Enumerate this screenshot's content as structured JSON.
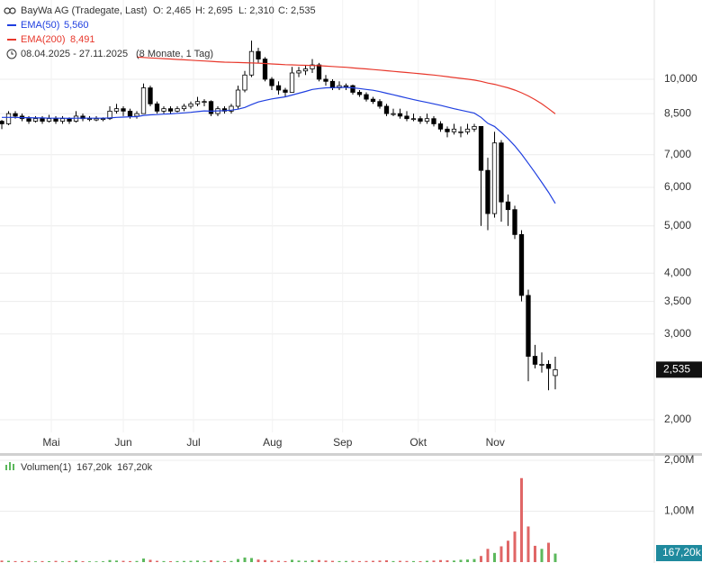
{
  "chart_data": {
    "type": "candlestick",
    "title": "BayWa AG (Tradegate, Last)",
    "ohlc_text": [
      "O: 2,465",
      "H: 2,695",
      "L: 2,310",
      "C: 2,535"
    ],
    "period": "08.04.2025 - 27.11.2025",
    "period_note": "(8 Monate, 1 Tag)",
    "last_price_label": "2,535",
    "log_scale": true,
    "grid": true,
    "up_color": "#ffffff",
    "down_color": "#000000",
    "ylim": [
      1.709,
      14.54
    ],
    "yticks": [
      {
        "value": 2,
        "label": "2,000"
      },
      {
        "value": 3,
        "label": "3,000"
      },
      {
        "value": 3.5,
        "label": "3,500"
      },
      {
        "value": 4,
        "label": "4,000"
      },
      {
        "value": 5,
        "label": "5,000"
      },
      {
        "value": 6,
        "label": "6,000"
      },
      {
        "value": 7,
        "label": "7,000"
      },
      {
        "value": 8.5,
        "label": "8,500"
      },
      {
        "value": 10,
        "label": "10,000"
      }
    ],
    "xlim": [
      -0.27,
      96.67
    ],
    "xticks": [
      {
        "value": 7.33,
        "label": "Mai"
      },
      {
        "value": 18,
        "label": "Jun"
      },
      {
        "value": 28.4,
        "label": "Jul"
      },
      {
        "value": 40.1,
        "label": "Aug"
      },
      {
        "value": 50.5,
        "label": "Sep"
      },
      {
        "value": 61.7,
        "label": "Okt"
      },
      {
        "value": 73.1,
        "label": "Nov"
      }
    ],
    "ohlc": [
      [
        8.2,
        8.25,
        7.9,
        8.1
      ],
      [
        8.1,
        8.6,
        8.05,
        8.5
      ],
      [
        8.5,
        8.6,
        8.3,
        8.4
      ],
      [
        8.4,
        8.5,
        8.2,
        8.3
      ],
      [
        8.3,
        8.4,
        8.1,
        8.2
      ],
      [
        8.2,
        8.4,
        8.15,
        8.3
      ],
      [
        8.3,
        8.4,
        8.1,
        8.2
      ],
      [
        8.2,
        8.45,
        8.15,
        8.3
      ],
      [
        8.3,
        8.4,
        8.1,
        8.2
      ],
      [
        8.2,
        8.4,
        8.1,
        8.3
      ],
      [
        8.3,
        8.35,
        8.1,
        8.2
      ],
      [
        8.2,
        8.6,
        8.15,
        8.4
      ],
      [
        8.4,
        8.5,
        8.2,
        8.3
      ],
      [
        8.3,
        8.4,
        8.2,
        8.3
      ],
      [
        8.25,
        8.4,
        8.2,
        8.3
      ],
      [
        8.3,
        8.35,
        8.2,
        8.3
      ],
      [
        8.3,
        8.8,
        8.25,
        8.6
      ],
      [
        8.6,
        8.9,
        8.5,
        8.7
      ],
      [
        8.7,
        8.8,
        8.4,
        8.6
      ],
      [
        8.6,
        8.7,
        8.3,
        8.4
      ],
      [
        8.4,
        8.6,
        8.3,
        8.5
      ],
      [
        8.5,
        9.8,
        8.5,
        9.6
      ],
      [
        9.6,
        9.7,
        8.8,
        8.9
      ],
      [
        8.9,
        9.0,
        8.5,
        8.6
      ],
      [
        8.6,
        8.8,
        8.5,
        8.7
      ],
      [
        8.7,
        8.8,
        8.5,
        8.6
      ],
      [
        8.6,
        8.8,
        8.55,
        8.7
      ],
      [
        8.7,
        8.9,
        8.6,
        8.8
      ],
      [
        8.8,
        9.0,
        8.7,
        8.9
      ],
      [
        8.9,
        9.2,
        8.8,
        9.0
      ],
      [
        9.0,
        9.1,
        8.8,
        9.0
      ],
      [
        9.0,
        9.05,
        8.4,
        8.5
      ],
      [
        8.5,
        8.8,
        8.4,
        8.7
      ],
      [
        8.7,
        8.8,
        8.5,
        8.6
      ],
      [
        8.6,
        8.9,
        8.5,
        8.8
      ],
      [
        8.8,
        9.7,
        8.7,
        9.5
      ],
      [
        9.5,
        10.4,
        9.4,
        10.2
      ],
      [
        10.2,
        12.0,
        10.1,
        11.4
      ],
      [
        11.4,
        11.6,
        10.8,
        11.0
      ],
      [
        11.0,
        11.1,
        9.9,
        10.0
      ],
      [
        10.0,
        10.1,
        9.5,
        9.7
      ],
      [
        9.7,
        9.9,
        9.3,
        9.5
      ],
      [
        9.5,
        9.6,
        9.2,
        9.4
      ],
      [
        9.4,
        10.6,
        9.4,
        10.3
      ],
      [
        10.3,
        10.6,
        10.1,
        10.4
      ],
      [
        10.4,
        10.7,
        10.2,
        10.5
      ],
      [
        10.5,
        11.0,
        10.3,
        10.7
      ],
      [
        10.7,
        10.8,
        9.9,
        10.0
      ],
      [
        10.0,
        10.2,
        9.7,
        9.9
      ],
      [
        9.9,
        10.0,
        9.5,
        9.6
      ],
      [
        9.6,
        9.9,
        9.5,
        9.7
      ],
      [
        9.7,
        9.8,
        9.5,
        9.7
      ],
      [
        9.7,
        9.75,
        9.3,
        9.4
      ],
      [
        9.4,
        9.5,
        9.2,
        9.3
      ],
      [
        9.3,
        9.4,
        9.0,
        9.1
      ],
      [
        9.1,
        9.2,
        8.9,
        9.0
      ],
      [
        9.0,
        9.1,
        8.7,
        8.8
      ],
      [
        8.8,
        8.9,
        8.4,
        8.5
      ],
      [
        8.5,
        8.7,
        8.4,
        8.5
      ],
      [
        8.5,
        8.7,
        8.3,
        8.4
      ],
      [
        8.4,
        8.6,
        8.2,
        8.3
      ],
      [
        8.3,
        8.5,
        8.2,
        8.3
      ],
      [
        8.3,
        8.4,
        8.1,
        8.2
      ],
      [
        8.2,
        8.5,
        8.1,
        8.3
      ],
      [
        8.3,
        8.4,
        8.0,
        8.1
      ],
      [
        8.1,
        8.2,
        7.8,
        7.9
      ],
      [
        7.9,
        8.0,
        7.6,
        7.8
      ],
      [
        7.8,
        8.1,
        7.7,
        7.9
      ],
      [
        7.8,
        8.0,
        7.6,
        7.8
      ],
      [
        7.8,
        8.1,
        7.7,
        7.9
      ],
      [
        7.9,
        8.1,
        7.8,
        8.0
      ],
      [
        8.0,
        8.0,
        5.0,
        6.5
      ],
      [
        6.5,
        6.9,
        4.9,
        5.3
      ],
      [
        5.3,
        7.8,
        5.2,
        7.4
      ],
      [
        7.4,
        7.5,
        5.1,
        5.6
      ],
      [
        5.6,
        5.8,
        5.0,
        5.4
      ],
      [
        5.4,
        5.5,
        4.7,
        4.8
      ],
      [
        4.8,
        4.9,
        3.5,
        3.6
      ],
      [
        3.6,
        3.7,
        2.4,
        2.7
      ],
      [
        2.7,
        2.85,
        2.55,
        2.6
      ],
      [
        2.6,
        2.75,
        2.5,
        2.6
      ],
      [
        2.6,
        2.65,
        2.3,
        2.55
      ],
      [
        2.465,
        2.695,
        2.31,
        2.535
      ]
    ],
    "series": [
      {
        "name": "EMA(50)",
        "color": "#1f3fe0",
        "last_label": "5,560",
        "values": [
          8.35,
          8.35,
          8.35,
          8.34,
          8.34,
          8.33,
          8.33,
          8.32,
          8.32,
          8.32,
          8.31,
          8.32,
          8.32,
          8.32,
          8.32,
          8.32,
          8.33,
          8.35,
          8.36,
          8.37,
          8.38,
          8.43,
          8.45,
          8.46,
          8.48,
          8.49,
          8.51,
          8.53,
          8.55,
          8.58,
          8.61,
          8.6,
          8.61,
          8.62,
          8.64,
          8.68,
          8.75,
          8.87,
          8.98,
          9.05,
          9.11,
          9.16,
          9.2,
          9.28,
          9.36,
          9.44,
          9.53,
          9.57,
          9.6,
          9.61,
          9.62,
          9.62,
          9.6,
          9.57,
          9.53,
          9.49,
          9.43,
          9.36,
          9.29,
          9.22,
          9.15,
          9.08,
          9.02,
          8.96,
          8.9,
          8.84,
          8.77,
          8.7,
          8.64,
          8.58,
          8.52,
          8.35,
          8.12,
          8.0,
          7.78,
          7.55,
          7.3,
          7.02,
          6.72,
          6.43,
          6.14,
          5.86,
          5.56
        ]
      },
      {
        "name": "EMA(200)",
        "color": "#e8382c",
        "last_label": "8,491",
        "values": [
          null,
          null,
          null,
          null,
          null,
          null,
          null,
          null,
          null,
          null,
          null,
          null,
          null,
          null,
          null,
          null,
          null,
          null,
          null,
          null,
          11.1,
          11.08,
          11.06,
          11.04,
          11.02,
          11.0,
          10.98,
          10.96,
          10.94,
          10.92,
          10.9,
          10.88,
          10.86,
          10.84,
          10.83,
          10.82,
          10.81,
          10.8,
          10.79,
          10.77,
          10.75,
          10.73,
          10.71,
          10.7,
          10.69,
          10.68,
          10.67,
          10.66,
          10.64,
          10.62,
          10.6,
          10.58,
          10.55,
          10.52,
          10.5,
          10.47,
          10.44,
          10.41,
          10.38,
          10.35,
          10.32,
          10.29,
          10.26,
          10.23,
          10.2,
          10.16,
          10.12,
          10.08,
          10.04,
          10.0,
          9.96,
          9.9,
          9.82,
          9.76,
          9.68,
          9.6,
          9.5,
          9.38,
          9.24,
          9.08,
          8.9,
          8.7,
          8.491
        ]
      }
    ],
    "volume": {
      "name": "Volumen(1)",
      "legend_values": [
        "167,20k",
        "167,20k"
      ],
      "badge": "167,20k",
      "ylim": [
        0,
        2088000
      ],
      "yticks": [
        {
          "value": 1000000,
          "label": "1,00M"
        },
        {
          "value": 2000000,
          "label": "2,00M"
        }
      ],
      "up_color": "#5cb85c",
      "down_color": "#e06666",
      "values": [
        30000,
        25000,
        20000,
        18000,
        22000,
        15000,
        20000,
        18000,
        24000,
        16000,
        20000,
        30000,
        18000,
        15000,
        14000,
        16000,
        40000,
        30000,
        25000,
        20000,
        22000,
        70000,
        45000,
        25000,
        20000,
        18000,
        20000,
        22000,
        25000,
        30000,
        20000,
        35000,
        25000,
        18000,
        22000,
        60000,
        90000,
        80000,
        50000,
        40000,
        30000,
        25000,
        20000,
        45000,
        30000,
        25000,
        35000,
        40000,
        30000,
        25000,
        20000,
        22000,
        25000,
        20000,
        22000,
        25000,
        30000,
        35000,
        20000,
        25000,
        22000,
        20000,
        18000,
        25000,
        30000,
        40000,
        35000,
        30000,
        45000,
        50000,
        60000,
        120000,
        260000,
        180000,
        310000,
        420000,
        600000,
        1650000,
        700000,
        320000,
        260000,
        380000,
        167200
      ]
    }
  }
}
